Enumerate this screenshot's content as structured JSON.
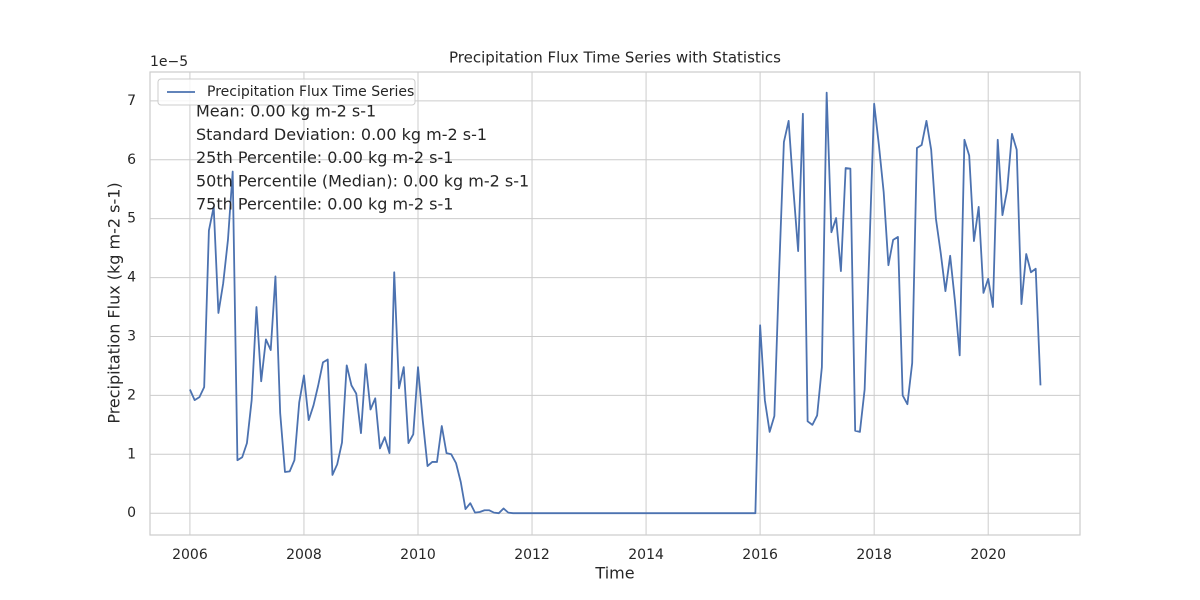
{
  "chart_data": {
    "type": "line",
    "title": "Precipitation Flux Time Series with Statistics",
    "x_label": "Time",
    "y_label": "Precipitation Flux (kg m-2 s-1)",
    "y_offset_label": "1e−5",
    "legend": "upper left",
    "grid": true,
    "annotations": [
      "Mean: 0.00 kg m-2 s-1",
      "Standard Deviation: 0.00 kg m-2 s-1",
      "25th Percentile: 0.00 kg m-2 s-1",
      "50th Percentile (Median): 0.00 kg m-2 s-1",
      "75th Percentile: 0.00 kg m-2 s-1"
    ],
    "x": [
      2006,
      2006.083,
      2006.167,
      2006.25,
      2006.333,
      2006.417,
      2006.5,
      2006.583,
      2006.667,
      2006.75,
      2006.833,
      2006.917,
      2007,
      2007.083,
      2007.167,
      2007.25,
      2007.333,
      2007.417,
      2007.5,
      2007.583,
      2007.667,
      2007.75,
      2007.833,
      2007.917,
      2008,
      2008.083,
      2008.167,
      2008.25,
      2008.333,
      2008.417,
      2008.5,
      2008.583,
      2008.667,
      2008.75,
      2008.833,
      2008.917,
      2009,
      2009.083,
      2009.167,
      2009.25,
      2009.333,
      2009.417,
      2009.5,
      2009.583,
      2009.667,
      2009.75,
      2009.833,
      2009.917,
      2010,
      2010.083,
      2010.167,
      2010.25,
      2010.333,
      2010.417,
      2010.5,
      2010.583,
      2010.667,
      2010.75,
      2010.833,
      2010.917,
      2011,
      2011.083,
      2011.167,
      2011.25,
      2011.333,
      2011.417,
      2011.5,
      2011.583,
      2011.667,
      2011.75,
      2011.833,
      2011.917,
      2012,
      2012.083,
      2012.167,
      2012.25,
      2012.333,
      2012.417,
      2012.5,
      2012.583,
      2012.667,
      2012.75,
      2012.833,
      2012.917,
      2013,
      2013.083,
      2013.167,
      2013.25,
      2013.333,
      2013.417,
      2013.5,
      2013.583,
      2013.667,
      2013.75,
      2013.833,
      2013.917,
      2014,
      2014.083,
      2014.167,
      2014.25,
      2014.333,
      2014.417,
      2014.5,
      2014.583,
      2014.667,
      2014.75,
      2014.833,
      2014.917,
      2015,
      2015.083,
      2015.167,
      2015.25,
      2015.333,
      2015.417,
      2015.5,
      2015.583,
      2015.667,
      2015.75,
      2015.833,
      2015.917,
      2016,
      2016.083,
      2016.167,
      2016.25,
      2016.333,
      2016.417,
      2016.5,
      2016.583,
      2016.667,
      2016.75,
      2016.833,
      2016.917,
      2017,
      2017.083,
      2017.167,
      2017.25,
      2017.333,
      2017.417,
      2017.5,
      2017.583,
      2017.667,
      2017.75,
      2017.833,
      2017.917,
      2018,
      2018.083,
      2018.167,
      2018.25,
      2018.333,
      2018.417,
      2018.5,
      2018.583,
      2018.667,
      2018.75,
      2018.833,
      2018.917,
      2019,
      2019.083,
      2019.167,
      2019.25,
      2019.333,
      2019.417,
      2019.5,
      2019.583,
      2019.667,
      2019.75,
      2019.833,
      2019.917,
      2020,
      2020.083,
      2020.167,
      2020.25,
      2020.333,
      2020.417,
      2020.5,
      2020.583,
      2020.667,
      2020.75,
      2020.833,
      2020.917
    ],
    "series": [
      {
        "name": "Precipitation Flux Time Series",
        "color": "#4c72b0",
        "values": [
          2.1,
          1.92,
          1.97,
          2.14,
          4.8,
          5.2,
          3.4,
          3.9,
          4.64,
          5.8,
          0.9,
          0.95,
          1.19,
          1.92,
          3.5,
          2.24,
          2.95,
          2.77,
          4.02,
          1.7,
          0.7,
          0.71,
          0.9,
          1.88,
          2.34,
          1.58,
          1.83,
          2.17,
          2.56,
          2.61,
          0.65,
          0.83,
          1.2,
          2.51,
          2.17,
          2.03,
          1.36,
          2.53,
          1.76,
          1.95,
          1.1,
          1.29,
          1.02,
          4.09,
          2.12,
          2.48,
          1.19,
          1.34,
          2.48,
          1.58,
          0.8,
          0.87,
          0.87,
          1.48,
          1.02,
          1.0,
          0.85,
          0.53,
          0.07,
          0.17,
          0.01,
          0.02,
          0.05,
          0.05,
          0.01,
          0,
          0.08,
          0.01,
          0,
          0,
          0,
          0,
          0,
          0,
          0,
          0,
          0,
          0,
          0,
          0,
          0,
          0,
          0,
          0,
          0,
          0,
          0,
          0,
          0,
          0,
          0,
          0,
          0,
          0,
          0,
          0,
          0,
          0,
          0,
          0,
          0,
          0,
          0,
          0,
          0,
          0,
          0,
          0,
          0,
          0,
          0,
          0,
          0,
          0,
          0,
          0,
          0,
          0,
          0,
          0,
          3.19,
          1.92,
          1.38,
          1.65,
          4.09,
          6.3,
          6.66,
          5.5,
          4.45,
          6.78,
          1.56,
          1.5,
          1.66,
          2.48,
          7.14,
          4.77,
          5.01,
          4.11,
          5.86,
          5.85,
          1.4,
          1.38,
          2.1,
          4.5,
          6.95,
          6.25,
          5.45,
          4.21,
          4.64,
          4.69,
          2.0,
          1.85,
          2.55,
          6.2,
          6.25,
          6.66,
          6.17,
          5.0,
          4.42,
          3.77,
          4.37,
          3.6,
          2.68,
          6.34,
          6.07,
          4.62,
          5.2,
          3.74,
          3.98,
          3.5,
          6.34,
          5.06,
          5.49,
          6.44,
          6.17,
          3.55,
          4.4,
          4.09,
          4.15,
          2.17
        ]
      }
    ],
    "xlim": [
      2005.3,
      2021.61
    ],
    "xticks": [
      2006,
      2008,
      2010,
      2012,
      2014,
      2016,
      2018,
      2020
    ],
    "ylim": [
      -0.37,
      7.49
    ],
    "yticks": [
      0,
      1,
      2,
      3,
      4,
      5,
      6,
      7
    ]
  }
}
